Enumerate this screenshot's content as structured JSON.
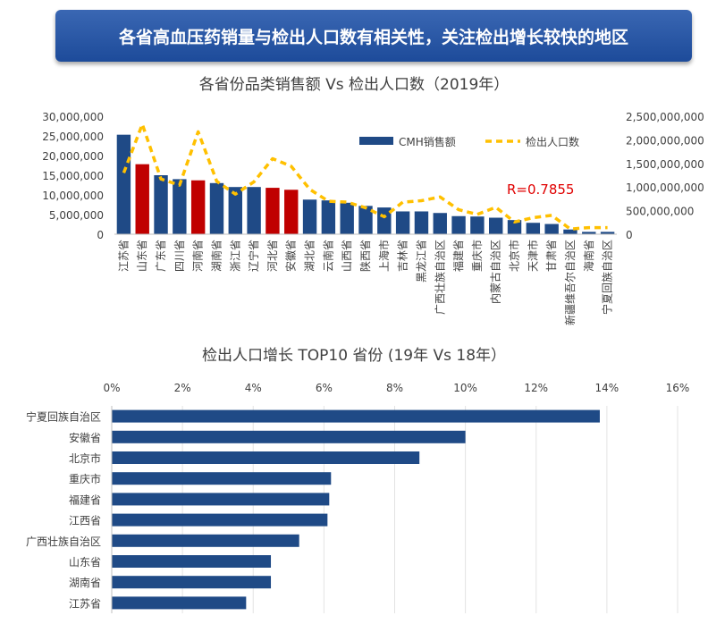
{
  "banner": {
    "title": "各省高血压药销量与检出人口数有相关性，关注检出增长较快的地区"
  },
  "colors": {
    "bar": "#1f4a86",
    "highlight": "#c00000",
    "line": "#ffc000",
    "r_text": "#e00000"
  },
  "chart_data": [
    {
      "type": "bar",
      "title": "各省份品类销售额 Vs 检出人口数（2019年）",
      "categories": [
        "江苏省",
        "山东省",
        "广东省",
        "四川省",
        "河南省",
        "湖南省",
        "浙江省",
        "辽宁省",
        "河北省",
        "安徽省",
        "湖北省",
        "云南省",
        "山西省",
        "陕西省",
        "上海市",
        "吉林省",
        "黑龙江省",
        "广西壮族自治区",
        "福建省",
        "重庆市",
        "内蒙古自治区",
        "北京市",
        "天津市",
        "甘肃省",
        "新疆维吾尔自治区",
        "海南省",
        "宁夏回族自治区"
      ],
      "highlighted": [
        "山东省",
        "河南省",
        "河北省",
        "安徽省"
      ],
      "series": [
        {
          "name": "CMH销售额",
          "axis": "left",
          "values": [
            25300000,
            17800000,
            15000000,
            14000000,
            13700000,
            13000000,
            12000000,
            12000000,
            11800000,
            11300000,
            8800000,
            8600000,
            8000000,
            7200000,
            6800000,
            5800000,
            5800000,
            5400000,
            4600000,
            4500000,
            4200000,
            3600000,
            2900000,
            2600000,
            1200000,
            600000,
            600000
          ]
        },
        {
          "name": "检出人口数",
          "axis": "right",
          "values": [
            1300000000,
            2330000000,
            1170000000,
            1040000000,
            2170000000,
            1120000000,
            850000000,
            1110000000,
            1600000000,
            1440000000,
            950000000,
            700000000,
            680000000,
            560000000,
            370000000,
            680000000,
            710000000,
            790000000,
            520000000,
            420000000,
            570000000,
            260000000,
            350000000,
            400000000,
            110000000,
            140000000,
            140000000
          ]
        }
      ],
      "ylim_left": [
        0,
        30000000
      ],
      "yticks_left": [
        "0",
        "5,000,000",
        "10,000,000",
        "15,000,000",
        "20,000,000",
        "25,000,000",
        "30,000,000"
      ],
      "ylim_right": [
        0,
        2500000000
      ],
      "yticks_right": [
        "0",
        "500,000,000",
        "1,000,000,000",
        "1,500,000,000",
        "2,000,000,000",
        "2,500,000,000"
      ],
      "annotation": "R=0.7855",
      "legend_position": "top-right"
    },
    {
      "type": "bar",
      "orientation": "horizontal",
      "title": "检出人口增长 TOP10 省份 (19年 Vs 18年）",
      "categories": [
        "宁夏回族自治区",
        "安徽省",
        "北京市",
        "重庆市",
        "福建省",
        "江西省",
        "广西壮族自治区",
        "山东省",
        "湖南省",
        "江苏省"
      ],
      "values": [
        0.138,
        0.1,
        0.087,
        0.062,
        0.0615,
        0.061,
        0.053,
        0.045,
        0.045,
        0.038
      ],
      "xlim": [
        0,
        0.16
      ],
      "xticks": [
        "0%",
        "2%",
        "4%",
        "6%",
        "8%",
        "10%",
        "12%",
        "14%",
        "16%"
      ],
      "grid": true
    }
  ]
}
